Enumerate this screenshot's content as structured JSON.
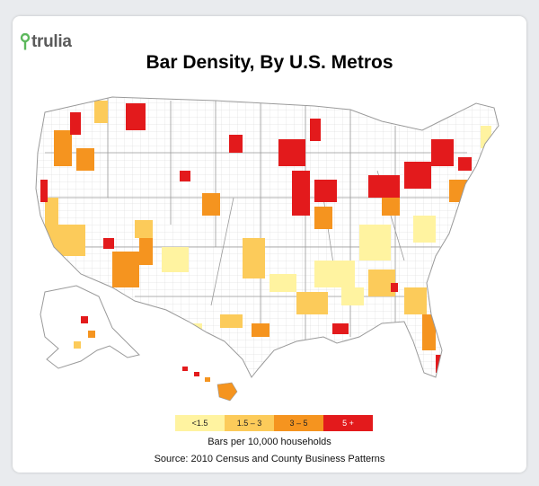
{
  "brand": {
    "name": "trulia",
    "logo_color": "#5cb85c"
  },
  "title": "Bar Density, By U.S. Metros",
  "legend": {
    "caption": "Bars per 10,000 households",
    "items": [
      {
        "label": "<1.5",
        "color": "#fff3a0",
        "level": 0
      },
      {
        "label": "1.5 – 3",
        "color": "#fccb5a",
        "level": 1
      },
      {
        "label": "3 – 5",
        "color": "#f5941f",
        "level": 2
      },
      {
        "label": "5 +",
        "color": "#e31a1c",
        "level": 3
      }
    ]
  },
  "source": "Source: 2010 Census and County Business Patterns",
  "map": {
    "land_color": "#ffffff",
    "border_color": "#b0b0b0",
    "regions_shown": [
      "contiguous-us",
      "alaska",
      "hawaii"
    ]
  }
}
